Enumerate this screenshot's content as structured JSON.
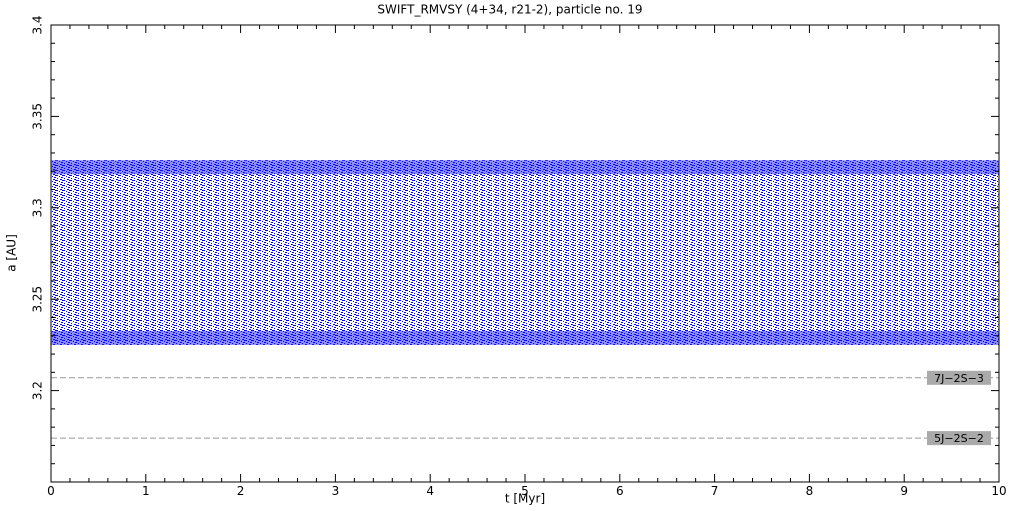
{
  "chart_data": {
    "type": "scatter",
    "title": "SWIFT_RMVSY (4+34, r21-2), particle no. 19",
    "x_label": "t [Myr]",
    "y_label": "a [AU]",
    "xlim": [
      0,
      10
    ],
    "xticks": [
      0,
      1,
      2,
      3,
      4,
      5,
      6,
      7,
      8,
      9,
      10
    ],
    "ylim": [
      3.15,
      3.4
    ],
    "yticks": [
      3.2,
      3.25,
      3.3,
      3.35,
      3.4
    ],
    "band": {
      "color": "#0000ff",
      "x": [
        0,
        10
      ],
      "lower": [
        3.225,
        3.225
      ],
      "upper": [
        3.326,
        3.326
      ]
    },
    "resonances": [
      {
        "label": "7J−2S−3",
        "a": 3.207
      },
      {
        "label": "5J−2S−2",
        "a": 3.174
      }
    ]
  }
}
